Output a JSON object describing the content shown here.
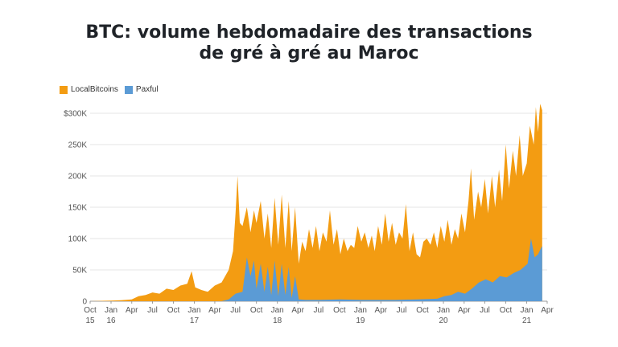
{
  "chart_data": {
    "type": "area",
    "title_line1": "BTC: volume hebdomadaire des transactions",
    "title_line2": "de gré à gré au Maroc",
    "stacked": true,
    "ylim": [
      0,
      315000
    ],
    "y_ticks": [
      "0",
      "50K",
      "100K",
      "150K",
      "200K",
      "250K",
      "$300K"
    ],
    "x_ticks": [
      {
        "month": "Oct",
        "year": "15"
      },
      {
        "month": "Jan",
        "year": "16"
      },
      {
        "month": "Apr",
        "year": ""
      },
      {
        "month": "Jul",
        "year": ""
      },
      {
        "month": "Oct",
        "year": ""
      },
      {
        "month": "Jan",
        "year": "17"
      },
      {
        "month": "Apr",
        "year": ""
      },
      {
        "month": "Jul",
        "year": ""
      },
      {
        "month": "Oct",
        "year": ""
      },
      {
        "month": "Jan",
        "year": "18"
      },
      {
        "month": "Apr",
        "year": ""
      },
      {
        "month": "Jul",
        "year": ""
      },
      {
        "month": "Oct",
        "year": ""
      },
      {
        "month": "Jan",
        "year": "19"
      },
      {
        "month": "Apr",
        "year": ""
      },
      {
        "month": "Jul",
        "year": ""
      },
      {
        "month": "Oct",
        "year": ""
      },
      {
        "month": "Jan",
        "year": "20"
      },
      {
        "month": "Apr",
        "year": ""
      },
      {
        "month": "Jul",
        "year": ""
      },
      {
        "month": "Oct",
        "year": ""
      },
      {
        "month": "Jan",
        "year": "21"
      },
      {
        "month": "Apr",
        "year": ""
      }
    ],
    "legend": "top-left",
    "grid": true,
    "series": [
      {
        "name": "LocalBitcoins",
        "color": "#f39c12",
        "points": [
          [
            "2015-10-01",
            0
          ],
          [
            "2015-11-15",
            500
          ],
          [
            "2016-01-01",
            1000
          ],
          [
            "2016-02-15",
            1500
          ],
          [
            "2016-04-01",
            3000
          ],
          [
            "2016-05-01",
            8000
          ],
          [
            "2016-06-01",
            10000
          ],
          [
            "2016-07-01",
            14000
          ],
          [
            "2016-08-01",
            12000
          ],
          [
            "2016-09-01",
            20000
          ],
          [
            "2016-10-01",
            18000
          ],
          [
            "2016-11-01",
            25000
          ],
          [
            "2016-12-01",
            28000
          ],
          [
            "2016-12-20",
            48000
          ],
          [
            "2017-01-05",
            22000
          ],
          [
            "2017-02-01",
            18000
          ],
          [
            "2017-03-01",
            15000
          ],
          [
            "2017-04-01",
            25000
          ],
          [
            "2017-05-01",
            30000
          ],
          [
            "2017-06-01",
            50000
          ],
          [
            "2017-06-20",
            80000
          ],
          [
            "2017-07-01",
            140000
          ],
          [
            "2017-07-10",
            200000
          ],
          [
            "2017-07-20",
            125000
          ],
          [
            "2017-08-01",
            120000
          ],
          [
            "2017-08-20",
            150000
          ],
          [
            "2017-09-05",
            110000
          ],
          [
            "2017-09-20",
            145000
          ],
          [
            "2017-10-01",
            125000
          ],
          [
            "2017-10-20",
            160000
          ],
          [
            "2017-11-05",
            100000
          ],
          [
            "2017-11-20",
            140000
          ],
          [
            "2017-12-05",
            85000
          ],
          [
            "2017-12-20",
            165000
          ],
          [
            "2018-01-05",
            90000
          ],
          [
            "2018-01-20",
            170000
          ],
          [
            "2018-02-05",
            85000
          ],
          [
            "2018-02-20",
            160000
          ],
          [
            "2018-03-05",
            80000
          ],
          [
            "2018-03-20",
            150000
          ],
          [
            "2018-04-05",
            60000
          ],
          [
            "2018-04-20",
            95000
          ],
          [
            "2018-05-05",
            80000
          ],
          [
            "2018-05-20",
            115000
          ],
          [
            "2018-06-05",
            85000
          ],
          [
            "2018-06-20",
            120000
          ],
          [
            "2018-07-05",
            80000
          ],
          [
            "2018-07-20",
            110000
          ],
          [
            "2018-08-05",
            95000
          ],
          [
            "2018-08-20",
            145000
          ],
          [
            "2018-09-05",
            90000
          ],
          [
            "2018-09-20",
            115000
          ],
          [
            "2018-10-05",
            75000
          ],
          [
            "2018-10-20",
            100000
          ],
          [
            "2018-11-05",
            80000
          ],
          [
            "2018-11-20",
            90000
          ],
          [
            "2018-12-05",
            85000
          ],
          [
            "2018-12-20",
            120000
          ],
          [
            "2019-01-05",
            95000
          ],
          [
            "2019-01-20",
            110000
          ],
          [
            "2019-02-05",
            85000
          ],
          [
            "2019-02-20",
            105000
          ],
          [
            "2019-03-05",
            80000
          ],
          [
            "2019-03-20",
            120000
          ],
          [
            "2019-04-05",
            90000
          ],
          [
            "2019-04-20",
            140000
          ],
          [
            "2019-05-05",
            95000
          ],
          [
            "2019-05-20",
            125000
          ],
          [
            "2019-06-05",
            90000
          ],
          [
            "2019-06-20",
            110000
          ],
          [
            "2019-07-05",
            100000
          ],
          [
            "2019-07-20",
            155000
          ],
          [
            "2019-08-05",
            80000
          ],
          [
            "2019-08-20",
            110000
          ],
          [
            "2019-09-05",
            75000
          ],
          [
            "2019-09-20",
            70000
          ],
          [
            "2019-10-05",
            95000
          ],
          [
            "2019-10-20",
            100000
          ],
          [
            "2019-11-05",
            90000
          ],
          [
            "2019-11-20",
            110000
          ],
          [
            "2019-12-05",
            85000
          ],
          [
            "2019-12-20",
            120000
          ],
          [
            "2020-01-05",
            95000
          ],
          [
            "2020-01-20",
            130000
          ],
          [
            "2020-02-05",
            90000
          ],
          [
            "2020-02-20",
            115000
          ],
          [
            "2020-03-05",
            100000
          ],
          [
            "2020-03-20",
            140000
          ],
          [
            "2020-04-05",
            110000
          ],
          [
            "2020-04-20",
            160000
          ],
          [
            "2020-05-01",
            212000
          ],
          [
            "2020-05-15",
            130000
          ],
          [
            "2020-06-01",
            175000
          ],
          [
            "2020-06-15",
            150000
          ],
          [
            "2020-07-01",
            195000
          ],
          [
            "2020-07-15",
            140000
          ],
          [
            "2020-08-01",
            200000
          ],
          [
            "2020-08-15",
            150000
          ],
          [
            "2020-09-01",
            210000
          ],
          [
            "2020-09-15",
            160000
          ],
          [
            "2020-10-01",
            250000
          ],
          [
            "2020-10-15",
            180000
          ],
          [
            "2020-11-01",
            240000
          ],
          [
            "2020-11-15",
            200000
          ],
          [
            "2020-12-01",
            265000
          ],
          [
            "2020-12-15",
            200000
          ],
          [
            "2021-01-01",
            220000
          ],
          [
            "2021-01-15",
            280000
          ],
          [
            "2021-02-01",
            250000
          ],
          [
            "2021-02-10",
            310000
          ],
          [
            "2021-02-20",
            270000
          ],
          [
            "2021-03-01",
            315000
          ],
          [
            "2021-03-10",
            305000
          ]
        ]
      },
      {
        "name": "Paxful",
        "color": "#5b9bd5",
        "points": [
          [
            "2015-10-01",
            0
          ],
          [
            "2017-05-01",
            0
          ],
          [
            "2017-06-01",
            3000
          ],
          [
            "2017-07-01",
            12000
          ],
          [
            "2017-08-01",
            15000
          ],
          [
            "2017-08-20",
            70000
          ],
          [
            "2017-09-05",
            40000
          ],
          [
            "2017-09-20",
            65000
          ],
          [
            "2017-10-01",
            20000
          ],
          [
            "2017-10-20",
            60000
          ],
          [
            "2017-11-05",
            15000
          ],
          [
            "2017-11-20",
            55000
          ],
          [
            "2017-12-05",
            10000
          ],
          [
            "2017-12-20",
            65000
          ],
          [
            "2018-01-05",
            8000
          ],
          [
            "2018-01-20",
            60000
          ],
          [
            "2018-02-05",
            10000
          ],
          [
            "2018-02-20",
            55000
          ],
          [
            "2018-03-05",
            5000
          ],
          [
            "2018-03-20",
            40000
          ],
          [
            "2018-04-05",
            3000
          ],
          [
            "2018-05-05",
            2000
          ],
          [
            "2018-07-05",
            2000
          ],
          [
            "2018-10-05",
            3000
          ],
          [
            "2019-01-05",
            2000
          ],
          [
            "2019-06-05",
            2000
          ],
          [
            "2019-09-05",
            3000
          ],
          [
            "2019-12-05",
            4000
          ],
          [
            "2020-01-05",
            8000
          ],
          [
            "2020-02-05",
            10000
          ],
          [
            "2020-03-05",
            15000
          ],
          [
            "2020-04-05",
            12000
          ],
          [
            "2020-05-05",
            20000
          ],
          [
            "2020-06-05",
            30000
          ],
          [
            "2020-07-05",
            35000
          ],
          [
            "2020-08-05",
            30000
          ],
          [
            "2020-09-05",
            40000
          ],
          [
            "2020-10-05",
            38000
          ],
          [
            "2020-11-05",
            45000
          ],
          [
            "2020-12-05",
            50000
          ],
          [
            "2021-01-05",
            60000
          ],
          [
            "2021-01-20",
            100000
          ],
          [
            "2021-02-05",
            70000
          ],
          [
            "2021-02-20",
            75000
          ],
          [
            "2021-03-05",
            85000
          ],
          [
            "2021-03-10",
            88000
          ]
        ]
      }
    ]
  }
}
